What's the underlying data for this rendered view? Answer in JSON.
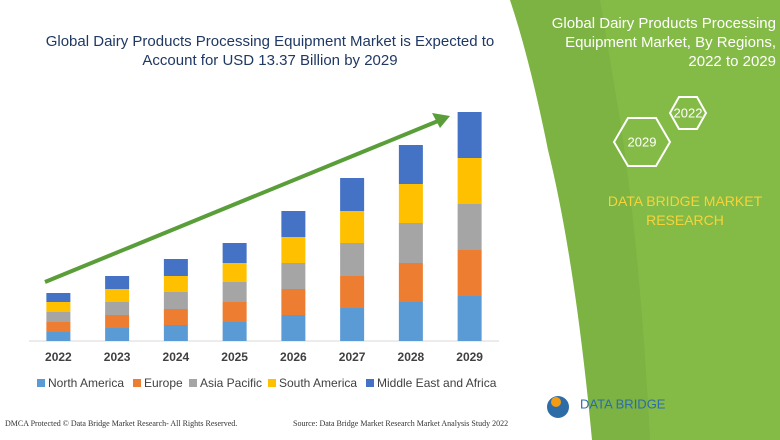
{
  "chart_data": {
    "type": "bar",
    "stacked": true,
    "title": "Global Dairy Products Processing Equipment Market is Expected to Account for USD 13.37 Billion by 2029",
    "categories": [
      "2022",
      "2023",
      "2024",
      "2025",
      "2026",
      "2027",
      "2028",
      "2029"
    ],
    "series": [
      {
        "name": "North America",
        "color": "#5b9bd5",
        "values": [
          9,
          13,
          16,
          19,
          26,
          33,
          39,
          45
        ]
      },
      {
        "name": "Europe",
        "color": "#ed7d31",
        "values": [
          10,
          13,
          16,
          20,
          26,
          32,
          39,
          46
        ]
      },
      {
        "name": "Asia Pacific",
        "color": "#a5a5a5",
        "values": [
          10,
          13,
          17,
          20,
          26,
          33,
          40,
          46
        ]
      },
      {
        "name": "South America",
        "color": "#ffc000",
        "values": [
          10,
          13,
          16,
          19,
          26,
          32,
          39,
          46
        ]
      },
      {
        "name": "Middle East and Africa",
        "color": "#4472c4",
        "values": [
          9,
          13,
          17,
          20,
          26,
          33,
          39,
          46
        ]
      }
    ],
    "legend": "bottom"
  },
  "panel": {
    "title": "Global Dairy Products Processing Equipment Market, By Regions, 2022 to 2029",
    "hex_right": "2022",
    "hex_left": "2029",
    "brand": "DATA BRIDGE MARKET RESEARCH"
  },
  "footer": {
    "left": "DMCA Protected © Data Bridge Market Research- All Rights Reserved.",
    "right": "Source: Data Bridge Market Research Market Analysis Study 2022",
    "logo": "DATA BRIDGE"
  }
}
